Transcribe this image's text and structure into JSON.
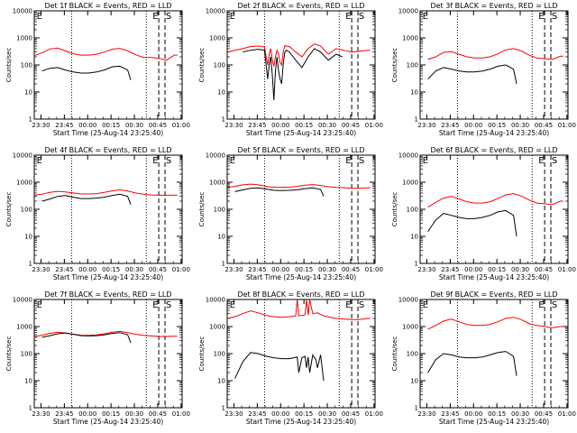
{
  "chart_data": [
    {
      "type": "line",
      "title": "Det 1f BLACK = Events, RED = LLD",
      "xlabel": "Start Time (25-Aug-14 23:25:40)",
      "ylabel": "Counts/sec",
      "y_scale": "log",
      "ylim": [
        1,
        10000
      ],
      "y_ticks": [
        "1",
        "10",
        "100",
        "1000",
        "10000"
      ],
      "x_ticks": [
        "23:30",
        "23:45",
        "00:00",
        "00:15",
        "00:30",
        "00:45",
        "01:00"
      ],
      "markers": [
        "E",
        "E",
        "S"
      ],
      "series": [
        {
          "color": "#ff0000",
          "x": [
            0,
            5,
            10,
            15,
            20,
            25,
            30,
            35,
            40,
            45,
            50,
            55,
            60,
            65,
            70,
            75,
            80,
            85,
            90,
            92
          ],
          "y": [
            220,
            280,
            390,
            420,
            330,
            260,
            230,
            230,
            250,
            300,
            380,
            410,
            330,
            240,
            190,
            190,
            175,
            150,
            230,
            230
          ]
        },
        {
          "color": "#000000",
          "x": [
            5,
            10,
            15,
            20,
            25,
            30,
            35,
            40,
            45,
            50,
            55,
            60,
            62
          ],
          "y": [
            60,
            75,
            80,
            65,
            55,
            50,
            50,
            55,
            65,
            85,
            90,
            65,
            28
          ]
        }
      ]
    },
    {
      "type": "line",
      "title": "Det 2f BLACK = Events, RED = LLD",
      "xlabel": "Start Time (25-Aug-14 23:25:40)",
      "ylabel": "Counts/sec",
      "y_scale": "log",
      "ylim": [
        1,
        10000
      ],
      "y_ticks": [
        "1",
        "10",
        "100",
        "1000",
        "10000"
      ],
      "x_ticks": [
        "23:30",
        "23:45",
        "00:00",
        "00:15",
        "00:30",
        "00:45",
        "01:00"
      ],
      "markers": [
        "E",
        "E",
        "S"
      ],
      "series": [
        {
          "color": "#ff0000",
          "x": [
            0,
            10,
            15,
            20,
            24,
            25,
            26,
            27,
            28,
            29,
            30,
            31,
            32,
            33,
            34,
            35,
            36,
            37,
            38,
            40,
            44,
            48,
            52,
            56,
            60,
            65,
            70,
            75,
            80,
            85,
            90,
            92
          ],
          "y": [
            300,
            400,
            480,
            500,
            460,
            200,
            100,
            250,
            400,
            150,
            90,
            200,
            350,
            250,
            120,
            100,
            300,
            520,
            500,
            480,
            300,
            200,
            400,
            600,
            500,
            250,
            400,
            350,
            300,
            320,
            350,
            350
          ]
        },
        {
          "color": "#000000",
          "x": [
            10,
            15,
            20,
            24,
            25,
            26,
            27,
            28,
            29,
            30,
            31,
            32,
            33,
            34,
            35,
            36,
            37,
            38,
            40,
            44,
            48,
            52,
            56,
            60,
            65,
            70,
            74
          ],
          "y": [
            300,
            350,
            380,
            350,
            100,
            30,
            100,
            200,
            40,
            5,
            60,
            200,
            60,
            30,
            20,
            100,
            300,
            350,
            300,
            150,
            80,
            200,
            400,
            300,
            150,
            250,
            200
          ]
        }
      ]
    },
    {
      "type": "line",
      "title": "Det 3f BLACK = Events, RED = LLD",
      "xlabel": "Start Time (25-Aug-14 23:25:40)",
      "ylabel": "Counts/sec",
      "y_scale": "log",
      "ylim": [
        1,
        10000
      ],
      "y_ticks": [
        "1",
        "10",
        "100",
        "1000",
        "10000"
      ],
      "x_ticks": [
        "23:30",
        "23:45",
        "00:00",
        "00:15",
        "00:30",
        "00:45",
        "01:00"
      ],
      "markers": [
        "E",
        "E",
        "S"
      ],
      "series": [
        {
          "color": "#ff0000",
          "x": [
            5,
            10,
            15,
            20,
            25,
            30,
            35,
            40,
            45,
            50,
            55,
            60,
            65,
            70,
            75,
            80,
            85,
            90,
            92
          ],
          "y": [
            160,
            200,
            290,
            310,
            250,
            200,
            180,
            180,
            200,
            260,
            360,
            400,
            330,
            230,
            180,
            170,
            160,
            210,
            210
          ]
        },
        {
          "color": "#000000",
          "x": [
            5,
            10,
            15,
            20,
            25,
            30,
            35,
            40,
            45,
            50,
            55,
            60,
            62
          ],
          "y": [
            30,
            60,
            80,
            70,
            60,
            55,
            55,
            60,
            70,
            90,
            100,
            70,
            20
          ]
        }
      ]
    },
    {
      "type": "line",
      "title": "Det 4f BLACK = Events, RED = LLD",
      "xlabel": "Start Time (25-Aug-14 23:25:40)",
      "ylabel": "Counts/sec",
      "y_scale": "log",
      "ylim": [
        1,
        10000
      ],
      "y_ticks": [
        "1",
        "10",
        "100",
        "1000",
        "10000"
      ],
      "x_ticks": [
        "23:30",
        "23:45",
        "00:00",
        "00:15",
        "00:30",
        "00:45",
        "01:00"
      ],
      "markers": [
        "E",
        "E",
        "S"
      ],
      "series": [
        {
          "color": "#ff0000",
          "x": [
            0,
            5,
            10,
            15,
            20,
            25,
            30,
            35,
            40,
            45,
            50,
            55,
            60,
            65,
            70,
            75,
            80,
            85,
            90,
            92
          ],
          "y": [
            330,
            360,
            420,
            460,
            440,
            400,
            370,
            370,
            380,
            420,
            480,
            520,
            470,
            400,
            360,
            340,
            330,
            330,
            330,
            330
          ]
        },
        {
          "color": "#000000",
          "x": [
            5,
            10,
            15,
            20,
            25,
            30,
            35,
            40,
            45,
            50,
            55,
            60,
            62
          ],
          "y": [
            200,
            240,
            300,
            320,
            280,
            250,
            250,
            260,
            280,
            320,
            360,
            300,
            150
          ]
        }
      ]
    },
    {
      "type": "line",
      "title": "Det 5f BLACK = Events, RED = LLD",
      "xlabel": "Start Time (25-Aug-14 23:25:40)",
      "ylabel": "Counts/sec",
      "y_scale": "log",
      "ylim": [
        1,
        10000
      ],
      "y_ticks": [
        "1",
        "10",
        "100",
        "1000",
        "10000"
      ],
      "x_ticks": [
        "23:30",
        "23:45",
        "00:00",
        "00:15",
        "00:30",
        "00:45",
        "01:00"
      ],
      "markers": [
        "E",
        "E",
        "S"
      ],
      "series": [
        {
          "color": "#ff0000",
          "x": [
            0,
            5,
            10,
            15,
            20,
            25,
            30,
            35,
            40,
            45,
            50,
            55,
            60,
            65,
            70,
            75,
            80,
            85,
            90,
            92
          ],
          "y": [
            650,
            700,
            800,
            850,
            800,
            700,
            650,
            650,
            660,
            700,
            780,
            820,
            760,
            680,
            640,
            630,
            600,
            600,
            620,
            620
          ]
        },
        {
          "color": "#000000",
          "x": [
            5,
            10,
            15,
            20,
            25,
            30,
            35,
            40,
            45,
            50,
            55,
            60,
            62
          ],
          "y": [
            450,
            520,
            600,
            620,
            560,
            500,
            490,
            500,
            520,
            580,
            620,
            540,
            300
          ]
        }
      ]
    },
    {
      "type": "line",
      "title": "Det 6f BLACK = Events, RED = LLD",
      "xlabel": "Start Time (25-Aug-14 23:25:40)",
      "ylabel": "Counts/sec",
      "y_scale": "log",
      "ylim": [
        1,
        10000
      ],
      "y_ticks": [
        "1",
        "10",
        "100",
        "1000",
        "10000"
      ],
      "x_ticks": [
        "23:30",
        "23:45",
        "00:00",
        "00:15",
        "00:30",
        "00:45",
        "01:00"
      ],
      "markers": [
        "E",
        "E",
        "S"
      ],
      "series": [
        {
          "color": "#ff0000",
          "x": [
            5,
            10,
            15,
            20,
            25,
            30,
            35,
            40,
            45,
            50,
            55,
            60,
            65,
            70,
            75,
            80,
            85,
            90,
            92
          ],
          "y": [
            120,
            180,
            260,
            300,
            240,
            190,
            170,
            170,
            190,
            250,
            340,
            380,
            310,
            220,
            170,
            160,
            150,
            200,
            200
          ]
        },
        {
          "color": "#000000",
          "x": [
            5,
            10,
            15,
            20,
            25,
            30,
            35,
            40,
            45,
            50,
            55,
            60,
            62
          ],
          "y": [
            15,
            40,
            70,
            60,
            50,
            45,
            45,
            50,
            60,
            80,
            90,
            60,
            10
          ]
        }
      ]
    },
    {
      "type": "line",
      "title": "Det 7f BLACK = Events, RED = LLD",
      "xlabel": "Start Time (25-Aug-14 23:25:40)",
      "ylabel": "Counts/sec",
      "y_scale": "log",
      "ylim": [
        1,
        10000
      ],
      "y_ticks": [
        "1",
        "10",
        "100",
        "1000",
        "10000"
      ],
      "x_ticks": [
        "23:30",
        "23:45",
        "00:00",
        "00:15",
        "00:30",
        "00:45",
        "01:00"
      ],
      "markers": [
        "E",
        "E",
        "S"
      ],
      "series": [
        {
          "color": "#ff0000",
          "x": [
            0,
            5,
            10,
            15,
            20,
            25,
            30,
            35,
            40,
            45,
            50,
            55,
            60,
            65,
            70,
            75,
            80,
            85,
            90,
            92
          ],
          "y": [
            420,
            480,
            560,
            620,
            580,
            520,
            480,
            470,
            490,
            540,
            620,
            660,
            600,
            520,
            470,
            450,
            430,
            430,
            440,
            440
          ]
        },
        {
          "color": "#000000",
          "x": [
            5,
            10,
            15,
            20,
            25,
            30,
            35,
            40,
            45,
            50,
            55,
            60,
            62
          ],
          "y": [
            400,
            460,
            540,
            580,
            520,
            460,
            450,
            460,
            490,
            560,
            600,
            500,
            250
          ]
        }
      ]
    },
    {
      "type": "line",
      "title": "Det 8f BLACK = Events, RED = LLD",
      "xlabel": "Start Time (25-Aug-14 23:25:40)",
      "ylabel": "Counts/sec",
      "y_scale": "log",
      "ylim": [
        1,
        10000
      ],
      "y_ticks": [
        "1",
        "10",
        "100",
        "1000",
        "10000"
      ],
      "x_ticks": [
        "23:30",
        "23:45",
        "00:00",
        "00:15",
        "00:30",
        "00:45",
        "01:00"
      ],
      "markers": [
        "E",
        "E",
        "S"
      ],
      "series": [
        {
          "color": "#ff0000",
          "x": [
            0,
            5,
            10,
            15,
            20,
            25,
            30,
            35,
            40,
            44,
            45,
            46,
            48,
            50,
            51,
            52,
            53,
            55,
            58,
            60,
            62,
            65,
            70,
            75,
            80,
            85,
            90,
            92
          ],
          "y": [
            2000,
            2300,
            3000,
            3800,
            3200,
            2600,
            2300,
            2200,
            2300,
            2500,
            10000,
            2500,
            2600,
            2700,
            10000,
            2700,
            10000,
            3000,
            3200,
            2800,
            2500,
            2300,
            2000,
            1900,
            1800,
            1800,
            2000,
            2000
          ]
        },
        {
          "color": "#000000",
          "x": [
            5,
            10,
            15,
            20,
            25,
            30,
            35,
            40,
            45,
            46,
            48,
            50,
            51,
            52,
            53,
            55,
            57,
            58,
            60,
            62
          ],
          "y": [
            12,
            50,
            110,
            100,
            80,
            70,
            65,
            65,
            75,
            20,
            70,
            80,
            30,
            75,
            20,
            90,
            60,
            30,
            90,
            10
          ]
        }
      ]
    },
    {
      "type": "line",
      "title": "Det 9f BLACK = Events, RED = LLD",
      "xlabel": "Start Time (25-Aug-14 23:25:40)",
      "ylabel": "Counts/sec",
      "y_scale": "log",
      "ylim": [
        1,
        10000
      ],
      "y_ticks": [
        "1",
        "10",
        "100",
        "1000",
        "10000"
      ],
      "x_ticks": [
        "23:30",
        "23:45",
        "00:00",
        "00:15",
        "00:30",
        "00:45",
        "01:00"
      ],
      "markers": [
        "E",
        "E",
        "S"
      ],
      "series": [
        {
          "color": "#ff0000",
          "x": [
            5,
            10,
            15,
            20,
            25,
            30,
            35,
            40,
            45,
            50,
            55,
            60,
            65,
            70,
            75,
            80,
            85,
            90,
            92
          ],
          "y": [
            800,
            1100,
            1600,
            1900,
            1500,
            1200,
            1100,
            1100,
            1200,
            1500,
            2000,
            2200,
            1800,
            1300,
            1100,
            1000,
            900,
            1000,
            1000
          ]
        },
        {
          "color": "#000000",
          "x": [
            5,
            10,
            15,
            20,
            25,
            30,
            35,
            40,
            45,
            50,
            55,
            60,
            62
          ],
          "y": [
            20,
            60,
            100,
            90,
            75,
            70,
            70,
            75,
            90,
            110,
            120,
            80,
            15
          ]
        }
      ]
    }
  ]
}
